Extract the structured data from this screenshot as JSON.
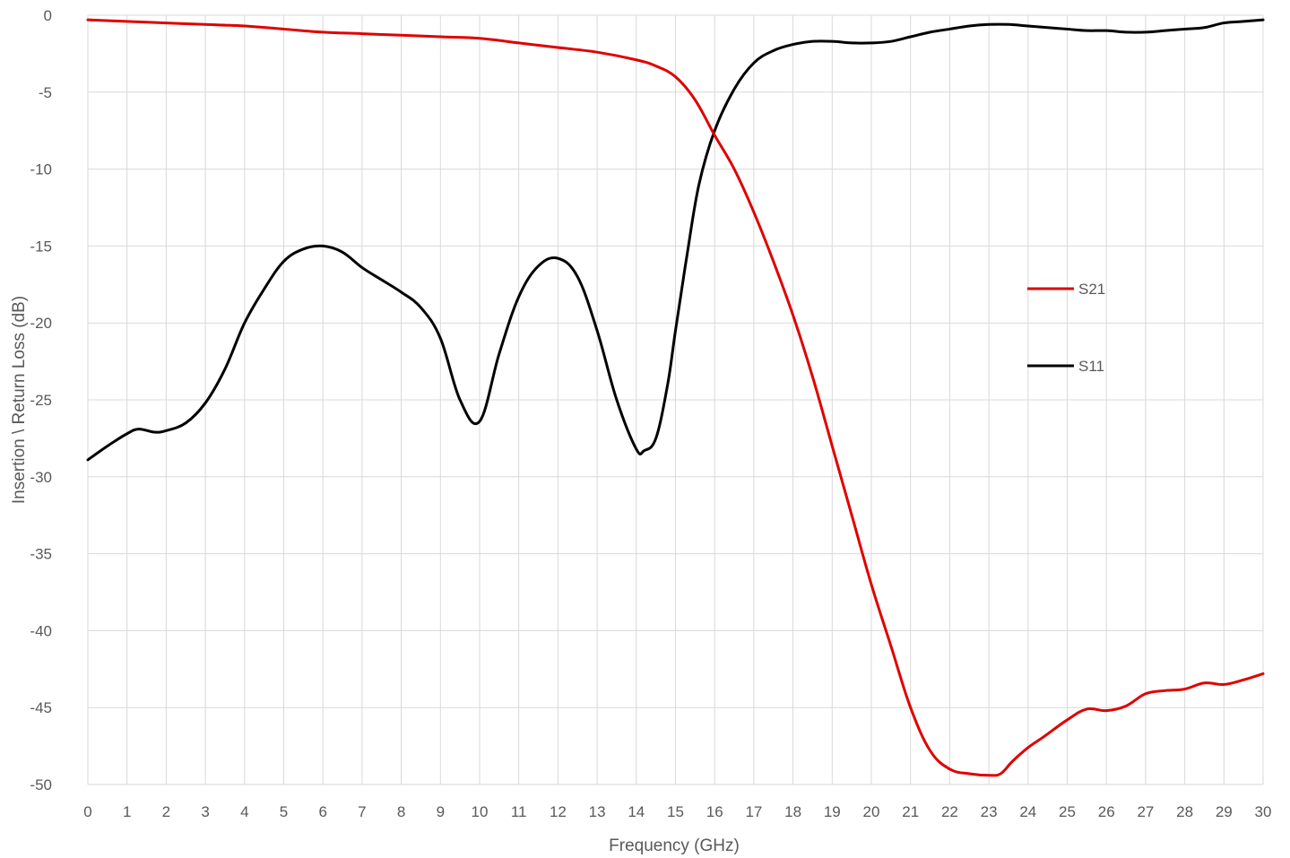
{
  "chart_data": {
    "type": "line",
    "title": "",
    "xlabel": "Frequency (GHz)",
    "ylabel": "Insertion \\ Return Loss (dB)",
    "xlim": [
      0,
      30
    ],
    "ylim": [
      -50,
      0
    ],
    "x_ticks": [
      0,
      1,
      2,
      3,
      4,
      5,
      6,
      7,
      8,
      9,
      10,
      11,
      12,
      13,
      14,
      15,
      16,
      17,
      18,
      19,
      20,
      21,
      22,
      23,
      24,
      25,
      26,
      27,
      28,
      29,
      30
    ],
    "y_ticks": [
      0,
      -5,
      -10,
      -15,
      -20,
      -25,
      -30,
      -35,
      -40,
      -45,
      -50
    ],
    "grid": true,
    "legend_placement": "right",
    "series": [
      {
        "name": "S21",
        "color": "#e00000",
        "x": [
          0,
          1,
          2,
          3,
          4,
          5,
          6,
          7,
          8,
          9,
          10,
          11,
          12,
          13,
          14,
          14.5,
          15,
          15.5,
          16,
          16.5,
          17,
          17.5,
          18,
          18.5,
          19,
          19.5,
          20,
          20.5,
          21,
          21.5,
          22,
          22.5,
          23,
          23.3,
          23.6,
          24,
          24.4,
          25,
          25.5,
          26,
          26.5,
          27,
          27.5,
          28,
          28.5,
          29,
          29.5,
          30
        ],
        "values": [
          -0.3,
          -0.4,
          -0.5,
          -0.6,
          -0.7,
          -0.9,
          -1.1,
          -1.2,
          -1.3,
          -1.4,
          -1.5,
          -1.8,
          -2.1,
          -2.4,
          -2.9,
          -3.3,
          -4.0,
          -5.5,
          -7.8,
          -10.0,
          -12.8,
          -16.0,
          -19.5,
          -23.5,
          -28.0,
          -32.5,
          -37.0,
          -41.0,
          -45.0,
          -47.8,
          -49.0,
          -49.3,
          -49.4,
          -49.3,
          -48.5,
          -47.6,
          -46.9,
          -45.8,
          -45.1,
          -45.2,
          -44.9,
          -44.1,
          -43.9,
          -43.8,
          -43.4,
          -43.5,
          -43.2,
          -42.8
        ]
      },
      {
        "name": "S11",
        "color": "#000000",
        "x": [
          0,
          0.5,
          1,
          1.3,
          1.7,
          2,
          2.5,
          3,
          3.5,
          4,
          4.5,
          5,
          5.5,
          6,
          6.5,
          7,
          7.5,
          8,
          8.5,
          9,
          9.5,
          10,
          10.5,
          11,
          11.5,
          12,
          12.5,
          13,
          13.5,
          14,
          14.2,
          14.5,
          14.8,
          15,
          15.3,
          15.6,
          16,
          16.5,
          17,
          17.5,
          18,
          18.5,
          19,
          19.5,
          20,
          20.5,
          21,
          21.5,
          22,
          22.5,
          23,
          23.5,
          24,
          24.5,
          25,
          25.5,
          26,
          26.5,
          27,
          27.5,
          28,
          28.5,
          29,
          29.5,
          30
        ],
        "values": [
          -28.9,
          -28.0,
          -27.2,
          -26.9,
          -27.1,
          -27.0,
          -26.5,
          -25.2,
          -23.0,
          -20.0,
          -17.8,
          -16.0,
          -15.2,
          -15.0,
          -15.4,
          -16.4,
          -17.2,
          -18.0,
          -19.0,
          -21.0,
          -25.0,
          -26.4,
          -22.0,
          -18.3,
          -16.3,
          -15.8,
          -17.0,
          -20.5,
          -25.0,
          -28.2,
          -28.3,
          -27.5,
          -24.0,
          -20.5,
          -15.5,
          -11.0,
          -7.5,
          -4.8,
          -3.1,
          -2.3,
          -1.9,
          -1.7,
          -1.7,
          -1.8,
          -1.8,
          -1.7,
          -1.4,
          -1.1,
          -0.9,
          -0.7,
          -0.6,
          -0.6,
          -0.7,
          -0.8,
          -0.9,
          -1.0,
          -1.0,
          -1.1,
          -1.1,
          -1.0,
          -0.9,
          -0.8,
          -0.5,
          -0.4,
          -0.3
        ]
      }
    ]
  }
}
